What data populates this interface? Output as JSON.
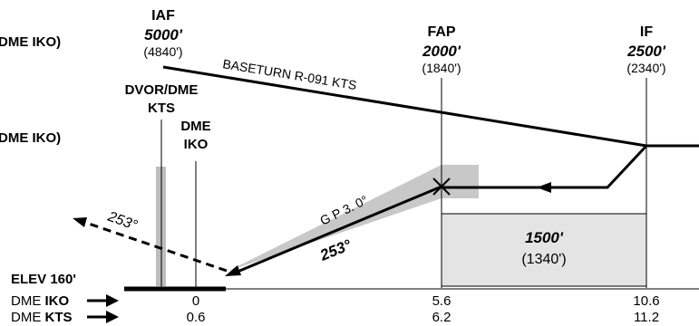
{
  "fixes": {
    "iaf": {
      "name": "IAF",
      "altitude": "5000'",
      "height": "(4840')"
    },
    "fap": {
      "name": "FAP",
      "altitude": "2000'",
      "height": "(1840')"
    },
    "if": {
      "name": "IF",
      "altitude": "2500'",
      "height": "(2340')"
    }
  },
  "side_labels": {
    "upper": "DME IKO)",
    "lower": "DME IKO)"
  },
  "navaids": {
    "vor_line1": "DVOR/DME",
    "vor_line2": "KTS",
    "dme_line1": "DME",
    "dme_line2": "IKO"
  },
  "baseturn": "BASETURN R-091 KTS",
  "glidepath": "G P 3. 0°",
  "final_course": "253°",
  "missed_course": "253°",
  "box": {
    "altitude": "1500'",
    "height": "(1340')"
  },
  "elevation": "ELEV 160'",
  "distance_rows": {
    "iko": {
      "prefix": "DME ",
      "navaid": "IKO",
      "values": [
        "0",
        "5.6",
        "10.6"
      ]
    },
    "kts": {
      "prefix": "DME ",
      "navaid": "KTS",
      "values": [
        "0.6",
        "6.2",
        "11.2"
      ]
    }
  },
  "colors": {
    "line": "#000000",
    "shade": "#c8c8c8",
    "box_fill": "#e4e4e4",
    "vor_bar": "#bdbdbd"
  }
}
